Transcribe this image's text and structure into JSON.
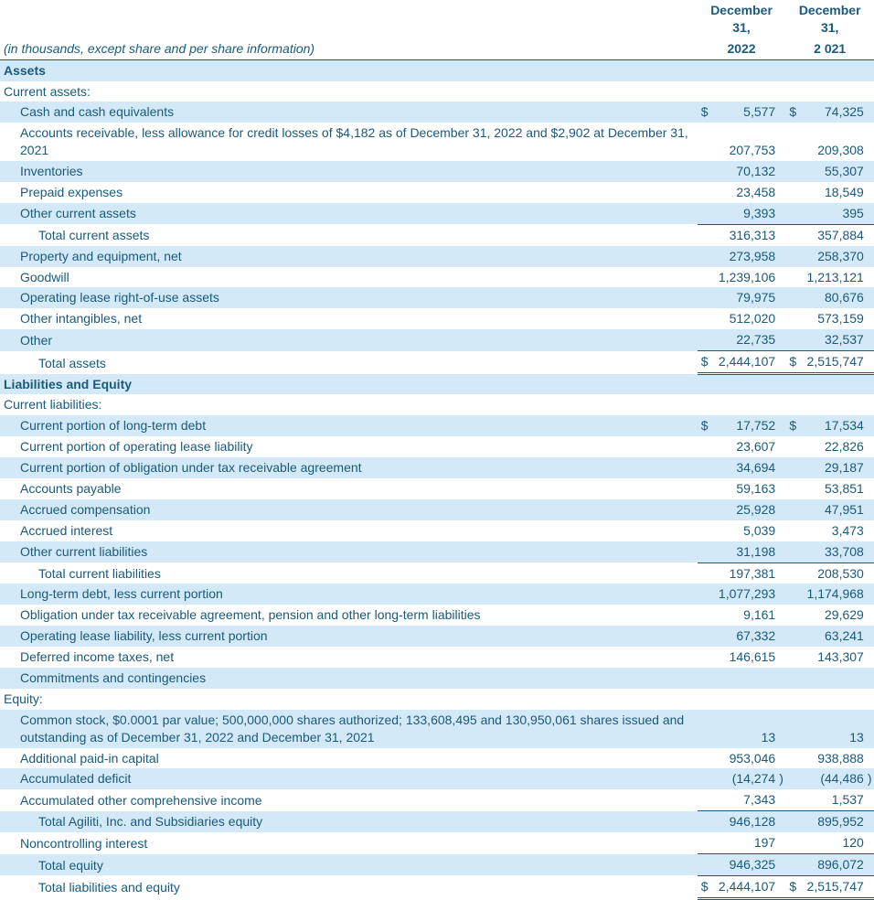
{
  "header": {
    "subtitle": "(in thousands, except share and per share information)",
    "col1_top": "December 31,",
    "col1_bot": "2022",
    "col2_top": "December 31,",
    "col2_bot": "2 021"
  },
  "colors": {
    "text": "#1a5a7a",
    "shade": "#d4e9f7",
    "rule": "#1a5a7a",
    "background": "#ffffff"
  },
  "rows": [
    {
      "label": "Assets",
      "type": "section",
      "shade": true
    },
    {
      "label": "Current assets:",
      "type": "plain"
    },
    {
      "label": "Cash and cash equivalents",
      "indent": 1,
      "shade": true,
      "sym1": "$",
      "v1": "5,577",
      "sym2": "$",
      "v2": "74,325"
    },
    {
      "label": "Accounts receivable, less allowance for credit losses of $4,182 as of December 31, 2022 and $2,902 at December 31, 2021",
      "indent": 1,
      "v1": "207,753",
      "v2": "209,308"
    },
    {
      "label": "Inventories",
      "indent": 1,
      "shade": true,
      "v1": "70,132",
      "v2": "55,307"
    },
    {
      "label": "Prepaid expenses",
      "indent": 1,
      "v1": "23,458",
      "v2": "18,549"
    },
    {
      "label": "Other current assets",
      "indent": 1,
      "shade": true,
      "v1": "9,393",
      "v2": "395"
    },
    {
      "label": "Total current assets",
      "indent": 2,
      "v1": "316,313",
      "v2": "357,884",
      "topborder": true
    },
    {
      "label": "Property and equipment, net",
      "indent": 1,
      "shade": true,
      "v1": "273,958",
      "v2": "258,370"
    },
    {
      "label": "Goodwill",
      "indent": 1,
      "v1": "1,239,106",
      "v2": "1,213,121"
    },
    {
      "label": "Operating lease right-of-use assets",
      "indent": 1,
      "shade": true,
      "v1": "79,975",
      "v2": "80,676"
    },
    {
      "label": "Other intangibles, net",
      "indent": 1,
      "v1": "512,020",
      "v2": "573,159"
    },
    {
      "label": "Other",
      "indent": 1,
      "shade": true,
      "v1": "22,735",
      "v2": "32,537"
    },
    {
      "label": "Total assets",
      "indent": 2,
      "sym1": "$",
      "v1": "2,444,107",
      "sym2": "$",
      "v2": "2,515,747",
      "topborder": true,
      "doublebottom": true
    },
    {
      "label": "Liabilities and Equity",
      "type": "section",
      "shade": true
    },
    {
      "label": "Current liabilities:",
      "type": "plain"
    },
    {
      "label": "Current portion of long-term debt",
      "indent": 1,
      "shade": true,
      "sym1": "$",
      "v1": "17,752",
      "sym2": "$",
      "v2": "17,534"
    },
    {
      "label": "Current portion of operating lease liability",
      "indent": 1,
      "v1": "23,607",
      "v2": "22,826"
    },
    {
      "label": "Current portion of obligation under tax receivable agreement",
      "indent": 1,
      "shade": true,
      "v1": "34,694",
      "v2": "29,187"
    },
    {
      "label": "Accounts payable",
      "indent": 1,
      "v1": "59,163",
      "v2": "53,851"
    },
    {
      "label": "Accrued compensation",
      "indent": 1,
      "shade": true,
      "v1": "25,928",
      "v2": "47,951"
    },
    {
      "label": "Accrued interest",
      "indent": 1,
      "v1": "5,039",
      "v2": "3,473"
    },
    {
      "label": "Other current liabilities",
      "indent": 1,
      "shade": true,
      "v1": "31,198",
      "v2": "33,708"
    },
    {
      "label": "Total current liabilities",
      "indent": 2,
      "v1": "197,381",
      "v2": "208,530",
      "topborder": true
    },
    {
      "label": "Long-term debt, less current portion",
      "indent": 1,
      "shade": true,
      "v1": "1,077,293",
      "v2": "1,174,968"
    },
    {
      "label": "Obligation under tax receivable agreement, pension and other long-term liabilities",
      "indent": 1,
      "v1": "9,161",
      "v2": "29,629"
    },
    {
      "label": "Operating lease liability, less current portion",
      "indent": 1,
      "shade": true,
      "v1": "67,332",
      "v2": "63,241"
    },
    {
      "label": "Deferred income taxes, net",
      "indent": 1,
      "v1": "146,615",
      "v2": "143,307"
    },
    {
      "label": "Commitments and contingencies",
      "indent": 1,
      "shade": true
    },
    {
      "label": "Equity:",
      "type": "plain"
    },
    {
      "label": "Common stock, $0.0001 par value; 500,000,000 shares authorized; 133,608,495 and 130,950,061 shares issued and outstanding as of December 31, 2022 and December 31, 2021",
      "indent": 1,
      "shade": true,
      "v1": "13",
      "v2": "13"
    },
    {
      "label": "Additional paid-in capital",
      "indent": 1,
      "v1": "953,046",
      "v2": "938,888"
    },
    {
      "label": "Accumulated deficit",
      "indent": 1,
      "shade": true,
      "v1": "(14,274",
      "p1": ")",
      "v2": "(44,486",
      "p2": ")"
    },
    {
      "label": "Accumulated other comprehensive income",
      "indent": 1,
      "v1": "7,343",
      "v2": "1,537"
    },
    {
      "label": "Total Agiliti, Inc. and Subsidiaries equity",
      "indent": 2,
      "shade": true,
      "v1": "946,128",
      "v2": "895,952",
      "topborder": true
    },
    {
      "label": "Noncontrolling interest",
      "indent": 1,
      "v1": "197",
      "v2": "120"
    },
    {
      "label": "Total equity",
      "indent": 2,
      "shade": true,
      "v1": "946,325",
      "v2": "896,072",
      "topborder": true
    },
    {
      "label": "Total liabilities and equity",
      "indent": 2,
      "sym1": "$",
      "v1": "2,444,107",
      "sym2": "$",
      "v2": "2,515,747",
      "topborder": true,
      "doublebottom": true
    }
  ]
}
